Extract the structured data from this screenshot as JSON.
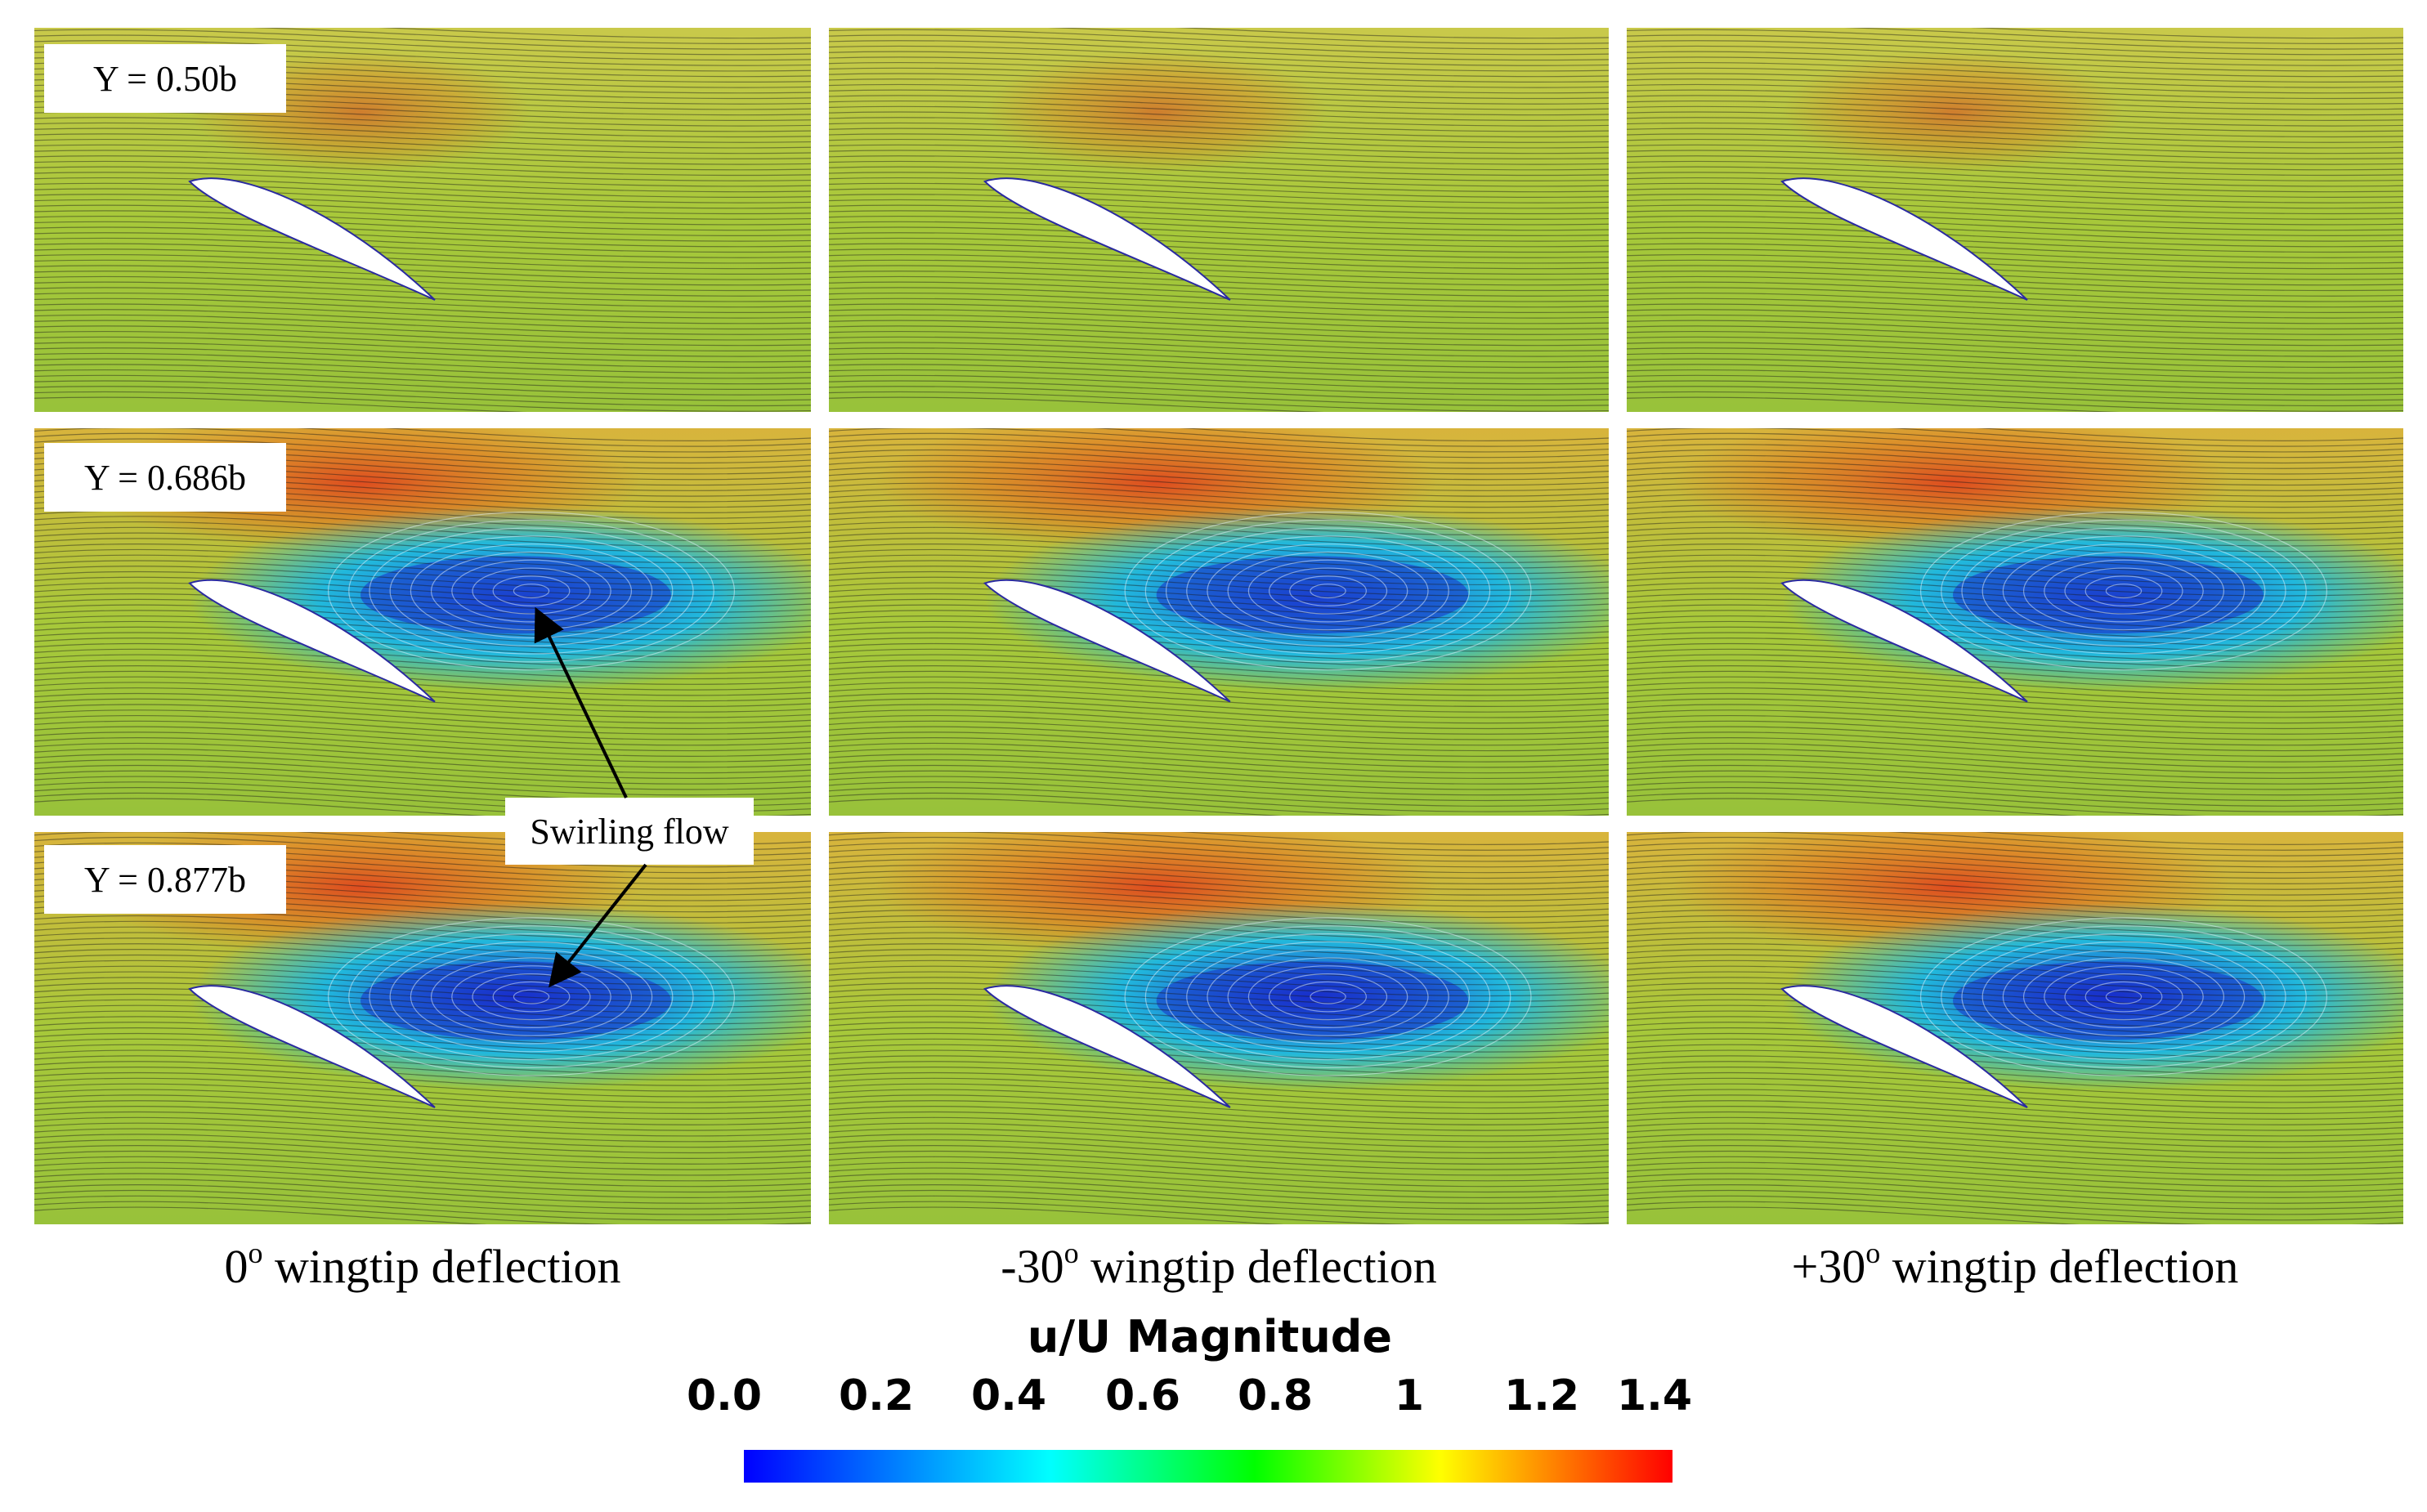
{
  "rows": [
    {
      "label": "Y = 0.50b"
    },
    {
      "label": "Y = 0.686b"
    },
    {
      "label": "Y = 0.877b"
    }
  ],
  "columns": [
    {
      "prefix": "0",
      "sup": "o",
      "suffix": " wingtip deflection"
    },
    {
      "prefix": "-30",
      "sup": "o",
      "suffix": " wingtip deflection"
    },
    {
      "prefix": "+30",
      "sup": "o",
      "suffix": " wingtip deflection"
    }
  ],
  "annotation": {
    "label": "Swirling flow"
  },
  "colorbar": {
    "title": "u/U Magnitude",
    "ticks": [
      "0.0",
      "0.2",
      "0.4",
      "0.6",
      "0.8",
      "1",
      "1.2",
      "1.4"
    ],
    "min": 0.0,
    "max": 1.4,
    "colors": [
      "#0000ff",
      "#00ffff",
      "#00ff00",
      "#ffff00",
      "#ff0000"
    ]
  }
}
